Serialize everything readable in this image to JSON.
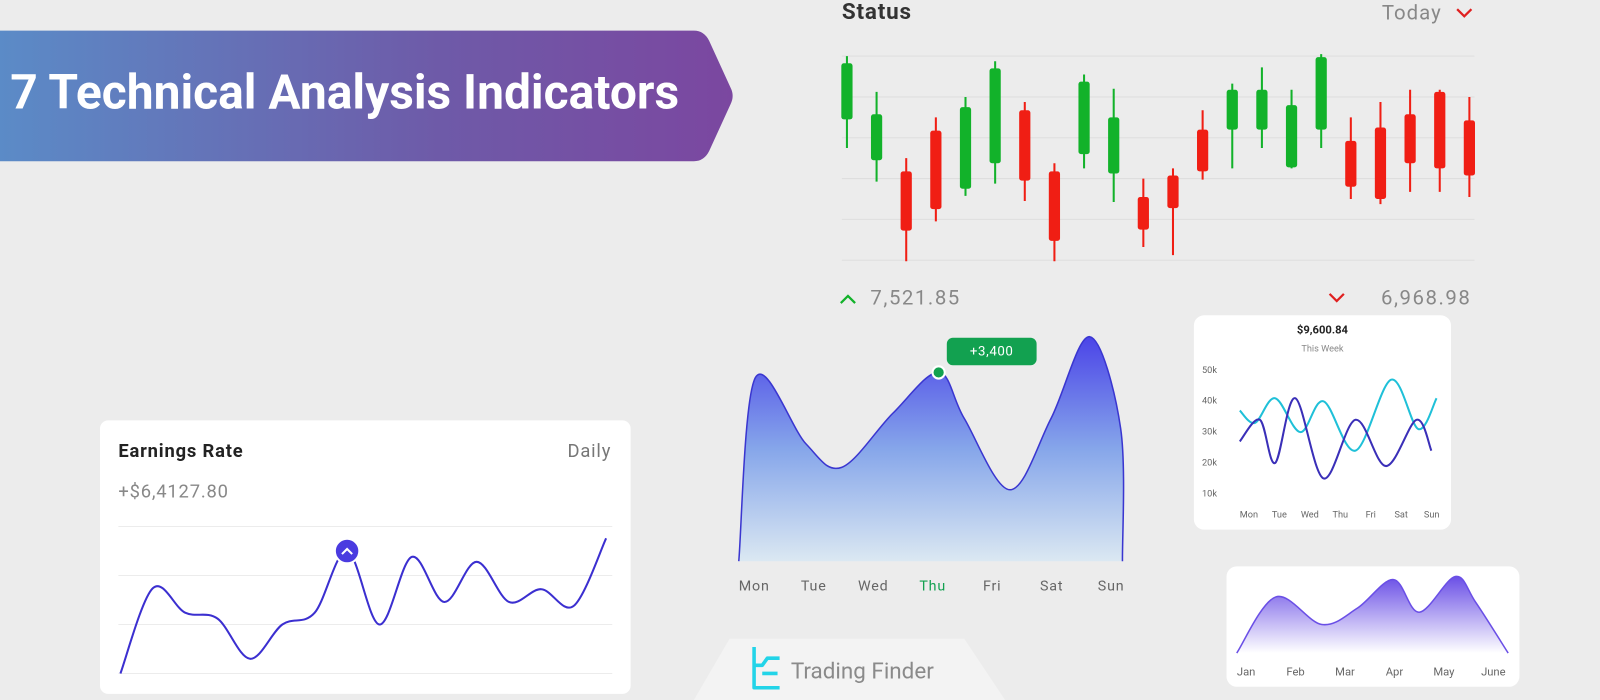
{
  "banner": {
    "title": "7 Technical Analysis Indicators"
  },
  "logo": {
    "text": "Trading Finder"
  },
  "chart_data": [
    {
      "type": "candlestick",
      "title": "Status",
      "period": "Today",
      "up_label": "7,521.85",
      "down_label": "6,968.98",
      "open": [
        143,
        103,
        92,
        132,
        75,
        100,
        152,
        92,
        109,
        90,
        67,
        88,
        133,
        133,
        133,
        96,
        133,
        122,
        135,
        148,
        170,
        142
      ],
      "high": [
        205,
        170,
        105,
        145,
        165,
        200,
        160,
        100,
        187,
        173,
        85,
        95,
        152,
        178,
        194,
        172,
        207,
        145,
        160,
        172,
        172,
        165
      ],
      "low": [
        115,
        82,
        4,
        43,
        68,
        80,
        63,
        4,
        95,
        62,
        18,
        10,
        84,
        95,
        115,
        95,
        115,
        65,
        60,
        72,
        72,
        67
      ],
      "close": [
        198,
        148,
        34,
        55,
        155,
        193,
        83,
        24,
        180,
        145,
        35,
        56,
        92,
        172,
        172,
        157,
        204,
        77,
        65,
        100,
        95,
        88
      ],
      "up_color": "#12b22a",
      "down_color": "#f01e14",
      "ylim": [
        0,
        210
      ],
      "yticks": [
        5,
        45,
        85,
        125,
        165,
        205
      ],
      "grid": true
    },
    {
      "type": "line",
      "title": "Earnings Rate",
      "period": "Daily",
      "subtitle": "+$6,4127.80",
      "values": [
        0,
        87,
        62,
        56,
        15,
        50,
        62,
        125,
        50,
        119,
        73,
        114,
        73,
        86,
        69,
        138
      ],
      "color": "#3b2fd0",
      "highlight_point": 7,
      "ylim": [
        0,
        150
      ],
      "yticks": [
        0,
        50,
        100,
        150
      ],
      "grid": true
    },
    {
      "type": "area",
      "x": [
        -0.26,
        0.02,
        0.87,
        1.47,
        2.33,
        3.1,
        3.53,
        4.3,
        4.99,
        5.64,
        6.16,
        6.19
      ],
      "values": [
        0,
        180,
        115,
        92,
        145,
        185,
        140,
        70,
        140,
        220,
        130,
        0
      ],
      "color": "#3a36d0",
      "xlim": [
        -0.26,
        6.19
      ],
      "ylim": [
        0,
        230
      ],
      "xticks": [
        {
          "value": 0,
          "label": "Mon"
        },
        {
          "value": 1,
          "label": "Tue"
        },
        {
          "value": 2,
          "label": "Wed"
        },
        {
          "value": 3,
          "label": "Thu"
        },
        {
          "value": 4,
          "label": "Fri"
        },
        {
          "value": 5,
          "label": "Sat"
        },
        {
          "value": 6,
          "label": "Sun"
        }
      ],
      "highlight_tick": 3,
      "highlight_point": 5,
      "annotation": "+3,400",
      "annotation_color": "#12a150"
    },
    {
      "type": "line",
      "title": "$9,600.84",
      "subtitle": "This Week",
      "series": [
        {
          "color": "#1fc0d8",
          "x": [
            -0.3,
            0.2,
            0.86,
            1.69,
            2.45,
            3.5,
            4.67,
            5.56,
            6.16
          ],
          "values": [
            37000,
            33000,
            41000,
            30000,
            40000,
            24000,
            47000,
            31000,
            41000
          ]
        },
        {
          "color": "#3a2fb8",
          "x": [
            -0.3,
            0.36,
            0.86,
            1.52,
            2.45,
            3.5,
            4.5,
            5.5,
            5.99
          ],
          "values": [
            27000,
            34000,
            20000,
            41000,
            15000,
            34000,
            19000,
            34000,
            24000
          ]
        }
      ],
      "xlim": [
        -0.4,
        6.3
      ],
      "ylim": [
        8000,
        52000
      ],
      "xticks": [
        {
          "value": 0,
          "label": "Mon"
        },
        {
          "value": 1,
          "label": "Tue"
        },
        {
          "value": 2,
          "label": "Wed"
        },
        {
          "value": 3,
          "label": "Thu"
        },
        {
          "value": 4,
          "label": "Fri"
        },
        {
          "value": 5,
          "label": "Sat"
        },
        {
          "value": 6,
          "label": "Sun"
        }
      ],
      "yticks": [
        {
          "value": 10000,
          "label": "10k"
        },
        {
          "value": 20000,
          "label": "20k"
        },
        {
          "value": 30000,
          "label": "30k"
        },
        {
          "value": 40000,
          "label": "40k"
        },
        {
          "value": 50000,
          "label": "50k"
        }
      ]
    },
    {
      "type": "area",
      "x": [
        -0.19,
        0.6,
        1.53,
        2.25,
        2.98,
        3.5,
        4.23,
        4.64,
        5.3
      ],
      "values": [
        0,
        55,
        28,
        44,
        72,
        40,
        75,
        50,
        0
      ],
      "color": "#6a4fe6",
      "xlim": [
        -0.19,
        5.3
      ],
      "ylim": [
        0,
        85
      ],
      "xticks": [
        {
          "value": 0,
          "label": "Jan"
        },
        {
          "value": 1,
          "label": "Feb"
        },
        {
          "value": 2,
          "label": "Mar"
        },
        {
          "value": 3,
          "label": "Apr"
        },
        {
          "value": 4,
          "label": "May"
        },
        {
          "value": 5,
          "label": "June"
        }
      ]
    }
  ]
}
